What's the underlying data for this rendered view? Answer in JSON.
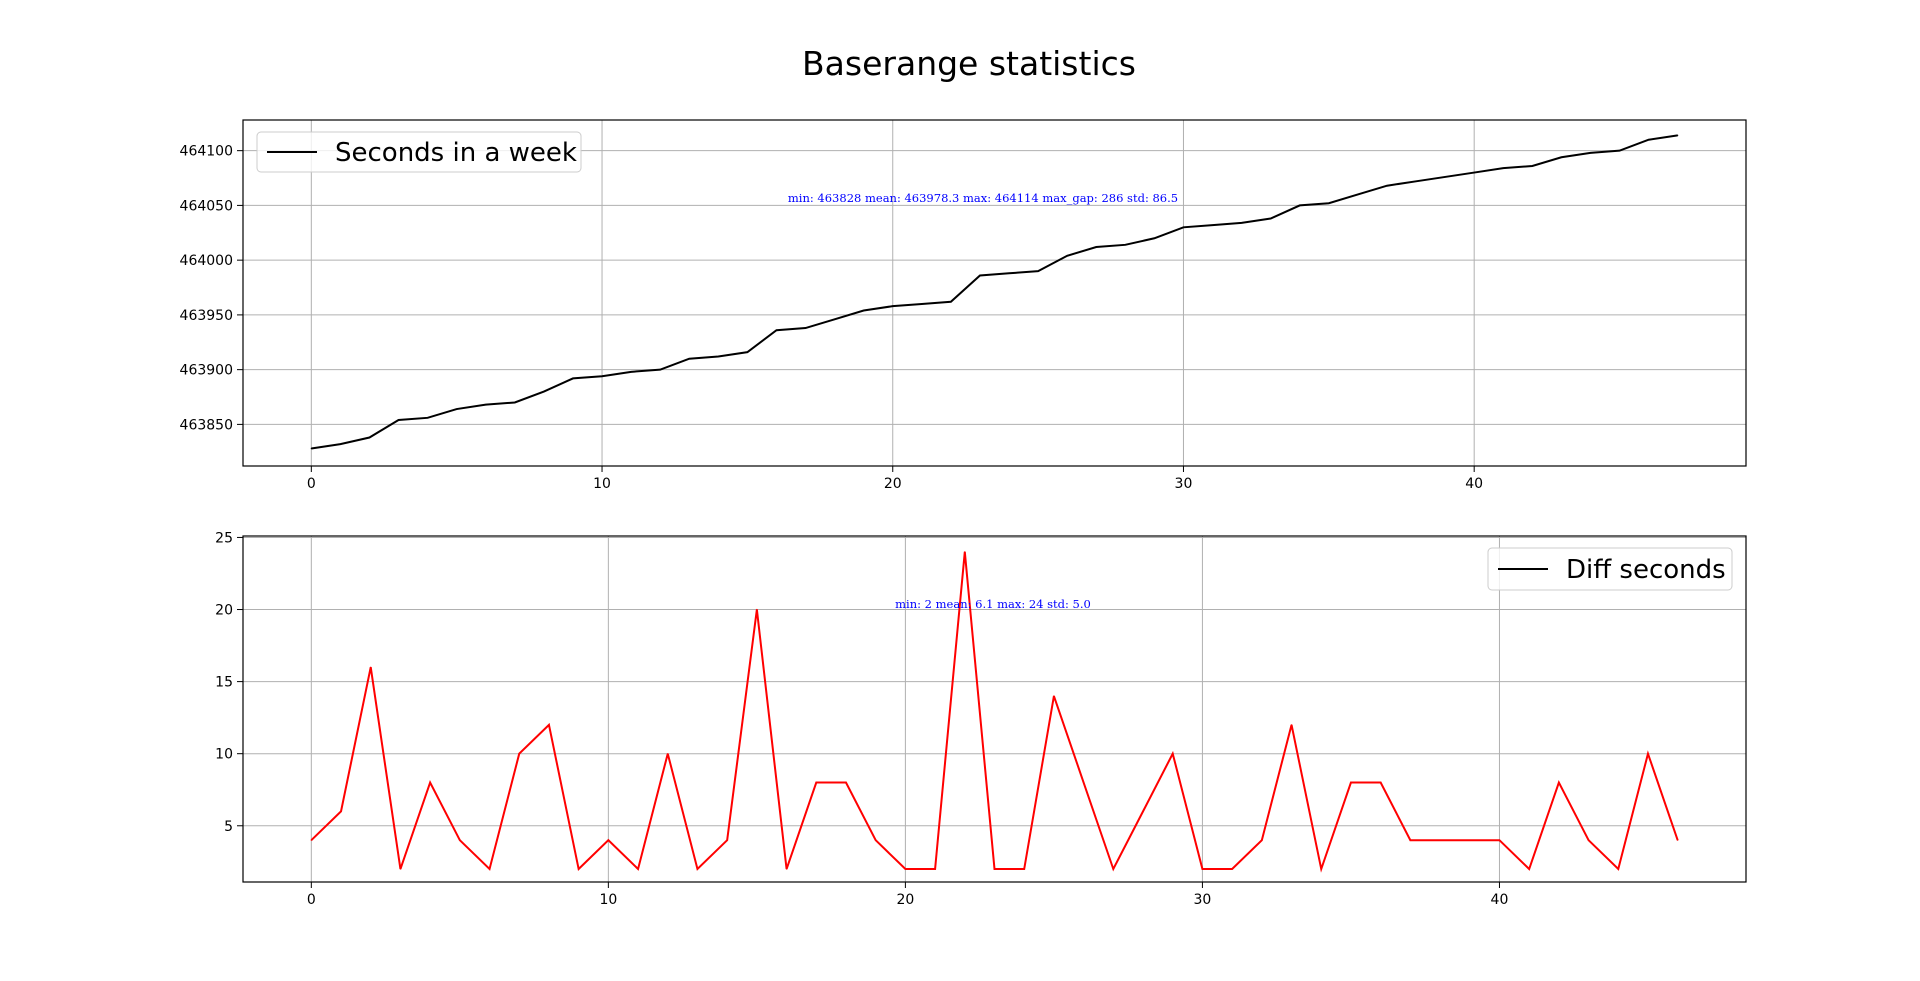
{
  "title": "Baserange statistics",
  "chart_data": [
    {
      "type": "line",
      "legend": {
        "label": "Seconds in a week",
        "color": "#000000",
        "placement": "upper left"
      },
      "line_color": "#000000",
      "annotation": "min: 463828  mean: 463978.3  max: 464114  max_gap: 286  std: 86.5",
      "annotation_color": "#0000ff",
      "grid": true,
      "xlim": [
        -2.35,
        49.35
      ],
      "ylim": [
        463812,
        464128
      ],
      "xticks": [
        0,
        10,
        20,
        30,
        40
      ],
      "yticks": [
        463850,
        463900,
        463950,
        464000,
        464050,
        464100
      ],
      "x": [
        0,
        1,
        2,
        3,
        4,
        5,
        6,
        7,
        8,
        9,
        10,
        11,
        12,
        13,
        14,
        15,
        16,
        17,
        18,
        19,
        20,
        21,
        22,
        23,
        24,
        25,
        26,
        27,
        28,
        29,
        30,
        31,
        32,
        33,
        34,
        35,
        36,
        37,
        38,
        39,
        40,
        41,
        42,
        43,
        44,
        45,
        46,
        47
      ],
      "values": [
        463828,
        463832,
        463838,
        463854,
        463856,
        463864,
        463868,
        463870,
        463880,
        463892,
        463894,
        463898,
        463900,
        463910,
        463912,
        463916,
        463936,
        463938,
        463946,
        463954,
        463958,
        463960,
        463962,
        463986,
        463988,
        463990,
        464004,
        464012,
        464014,
        464020,
        464030,
        464032,
        464034,
        464038,
        464050,
        464052,
        464060,
        464068,
        464072,
        464076,
        464080,
        464084,
        464086,
        464094,
        464098,
        464100,
        464110,
        464114
      ]
    },
    {
      "type": "line",
      "legend": {
        "label": "Diff seconds",
        "color": "#000000",
        "placement": "upper right"
      },
      "line_color": "#ff0000",
      "annotation": "min: 2  mean: 6.1  max: 24  std: 5.0",
      "annotation_color": "#0000ff",
      "grid": true,
      "xlim": [
        -2.3,
        48.3
      ],
      "ylim": [
        1.1,
        25.1
      ],
      "xticks": [
        0,
        10,
        20,
        30,
        40
      ],
      "yticks": [
        5,
        10,
        15,
        20,
        25
      ],
      "x": [
        0,
        1,
        2,
        3,
        4,
        5,
        6,
        7,
        8,
        9,
        10,
        11,
        12,
        13,
        14,
        15,
        16,
        17,
        18,
        19,
        20,
        21,
        22,
        23,
        24,
        25,
        26,
        27,
        28,
        29,
        30,
        31,
        32,
        33,
        34,
        35,
        36,
        37,
        38,
        39,
        40,
        41,
        42,
        43,
        44,
        45,
        46
      ],
      "values": [
        4,
        6,
        16,
        2,
        8,
        4,
        2,
        10,
        12,
        2,
        4,
        2,
        10,
        2,
        4,
        20,
        2,
        8,
        8,
        4,
        2,
        2,
        24,
        2,
        2,
        14,
        8,
        2,
        6,
        10,
        2,
        2,
        4,
        12,
        2,
        8,
        8,
        4,
        4,
        4,
        4,
        2,
        8,
        4,
        2,
        10,
        4
      ]
    }
  ]
}
